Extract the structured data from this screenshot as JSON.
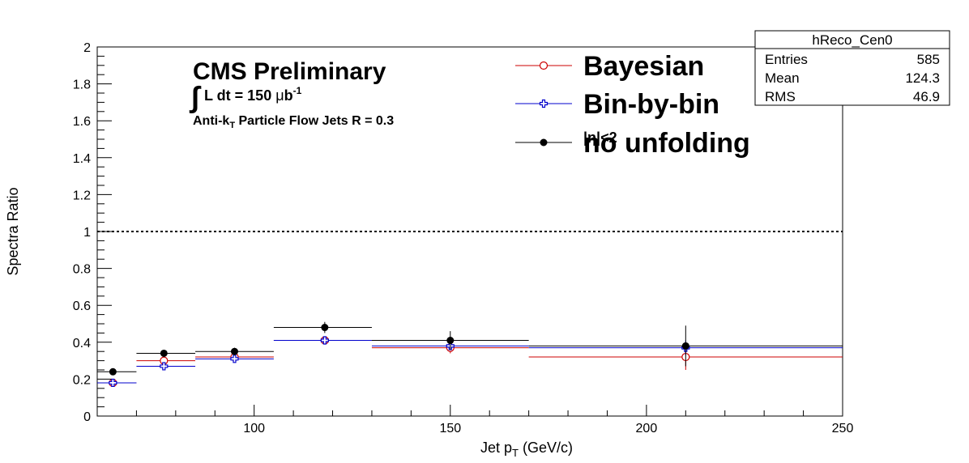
{
  "chart_data": {
    "type": "scatter",
    "xlabel_main": "Jet p",
    "xlabel_sub": "T",
    "xlabel_unit": " (GeV/c)",
    "ylabel": "Spectra Ratio",
    "xlim": [
      60,
      250
    ],
    "ylim": [
      0,
      2
    ],
    "x_ticks": [
      100,
      150,
      200,
      250
    ],
    "y_ticks": [
      0,
      0.2,
      0.4,
      0.6,
      0.8,
      1,
      1.2,
      1.4,
      1.6,
      1.8,
      2
    ],
    "y_tick_labels": [
      "0",
      "0.2",
      "0.4",
      "0.6",
      "0.8",
      "1",
      "1.2",
      "1.4",
      "1.6",
      "1.8",
      "2"
    ],
    "x_tick_labels": [
      "100",
      "150",
      "200",
      "250"
    ],
    "reference_line": 1,
    "bins": [
      [
        60,
        70
      ],
      [
        70,
        85
      ],
      [
        85,
        105
      ],
      [
        105,
        130
      ],
      [
        130,
        170
      ],
      [
        170,
        250
      ]
    ],
    "series": [
      {
        "name": "Bayesian",
        "color": "#cc0000",
        "marker": "open-circle",
        "x": [
          64,
          77,
          95,
          118,
          150,
          210
        ],
        "y": [
          0.18,
          0.3,
          0.32,
          0.41,
          0.37,
          0.32
        ],
        "err": [
          0.01,
          0.01,
          0.01,
          0.02,
          0.03,
          0.07
        ]
      },
      {
        "name": "Bin-by-bin",
        "color": "#0000cc",
        "marker": "open-cross",
        "x": [
          64,
          77,
          95,
          118,
          150,
          210
        ],
        "y": [
          0.18,
          0.27,
          0.31,
          0.41,
          0.38,
          0.37
        ],
        "err": [
          0.01,
          0.01,
          0.01,
          0.02,
          0.02,
          0.04
        ]
      },
      {
        "name": "no unfolding",
        "color": "#000000",
        "marker": "filled-circle",
        "x": [
          64,
          77,
          95,
          118,
          150,
          210
        ],
        "y": [
          0.24,
          0.34,
          0.35,
          0.48,
          0.41,
          0.38
        ],
        "err": [
          0.01,
          0.01,
          0.02,
          0.03,
          0.05,
          0.11
        ]
      }
    ]
  },
  "stats_box": {
    "title": "hReco_Cen0",
    "rows": [
      {
        "label": "Entries",
        "value": "585"
      },
      {
        "label": "Mean",
        "value": "124.3"
      },
      {
        "label": "RMS",
        "value": "46.9"
      }
    ]
  },
  "annotations": {
    "cms": "CMS Preliminary",
    "lumi_integral": "∫",
    "lumi_text": "L dt = 150 ",
    "lumi_mu": "μ",
    "lumi_b": "b",
    "lumi_sup": "-1",
    "algo_main": "Anti-k",
    "algo_sub": "T",
    "algo_rest": " Particle Flow Jets   R = 0.3",
    "eta_text": "|η|<2"
  }
}
